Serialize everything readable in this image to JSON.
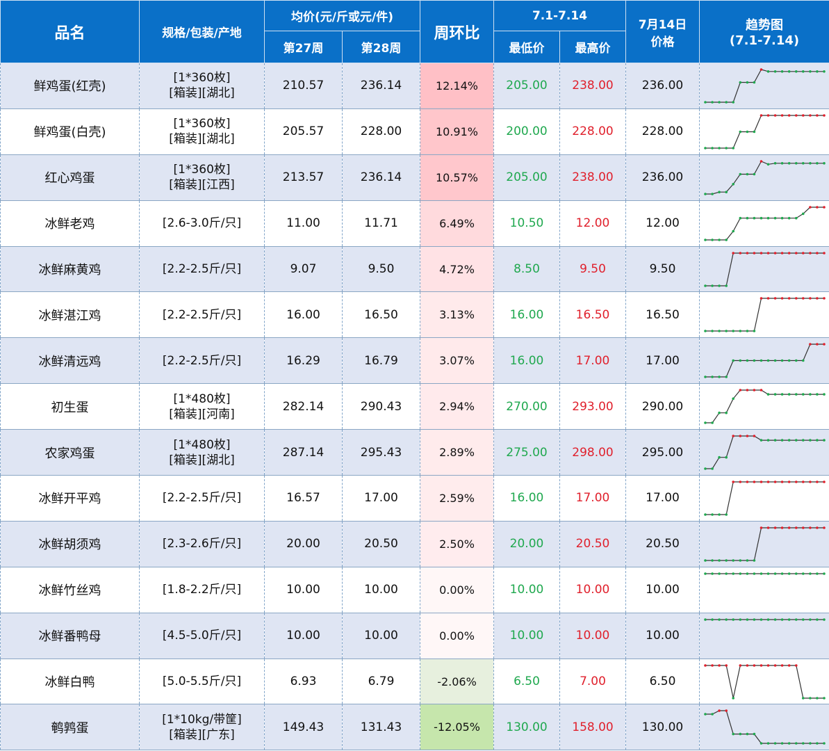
{
  "header": {
    "name": "品名",
    "spec": "规格/包装/产地",
    "avg": "均价(元/斤或元/件)",
    "w27": "第27周",
    "w28": "第28周",
    "wow": "周环比",
    "range": "7.1-7.14",
    "min": "最低价",
    "max": "最高价",
    "date_line1": "7月14日",
    "date_line2": "价格",
    "trend_line1": "趋势图",
    "trend_line2": "(7.1-7.14)"
  },
  "colors": {
    "header_bg": "#0a70c8",
    "row_alt_bg": "#dfe5f3",
    "low_price": "#1fa84e",
    "high_price": "#e0202c",
    "trend_high_marker": "#e0202c",
    "trend_low_marker": "#1fa84e"
  },
  "rows": [
    {
      "name": "鲜鸡蛋(红壳)",
      "spec1": "[1*360枚]",
      "spec2": "[箱装][湖北]",
      "w27": "210.57",
      "w28": "236.14",
      "wow": "12.14%",
      "wow_value": 12.14,
      "min": "205.00",
      "max": "238.00",
      "price": "236.00",
      "trend": [
        205,
        205,
        205,
        205,
        205,
        225,
        225,
        225,
        238,
        236,
        236,
        236,
        236,
        236,
        236,
        236,
        236,
        236
      ]
    },
    {
      "name": "鲜鸡蛋(白壳)",
      "spec1": "[1*360枚]",
      "spec2": "[箱装][湖北]",
      "w27": "205.57",
      "w28": "228.00",
      "wow": "10.91%",
      "wow_value": 10.91,
      "min": "200.00",
      "max": "228.00",
      "price": "228.00",
      "trend": [
        200,
        200,
        200,
        200,
        200,
        214,
        214,
        214,
        228,
        228,
        228,
        228,
        228,
        228,
        228,
        228,
        228,
        228
      ]
    },
    {
      "name": "红心鸡蛋",
      "spec1": "[1*360枚]",
      "spec2": "[箱装][江西]",
      "w27": "213.57",
      "w28": "236.14",
      "wow": "10.57%",
      "wow_value": 10.57,
      "min": "205.00",
      "max": "238.00",
      "price": "236.00",
      "trend": [
        205,
        205,
        207,
        207,
        215,
        225,
        225,
        225,
        238,
        235,
        236,
        236,
        236,
        236,
        236,
        236,
        236,
        236
      ]
    },
    {
      "name": "冰鲜老鸡",
      "spec1": "[2.6-3.0斤/只]",
      "spec2": "",
      "w27": "11.00",
      "w28": "11.71",
      "wow": "6.49%",
      "wow_value": 6.49,
      "min": "10.50",
      "max": "12.00",
      "price": "12.00",
      "trend": [
        10.5,
        10.5,
        10.5,
        10.5,
        10.9,
        11.5,
        11.5,
        11.5,
        11.5,
        11.5,
        11.5,
        11.5,
        11.5,
        11.5,
        11.7,
        12,
        12,
        12
      ]
    },
    {
      "name": "冰鲜麻黄鸡",
      "spec1": "[2.2-2.5斤/只]",
      "spec2": "",
      "w27": "9.07",
      "w28": "9.50",
      "wow": "4.72%",
      "wow_value": 4.72,
      "min": "8.50",
      "max": "9.50",
      "price": "9.50",
      "trend": [
        8.5,
        8.5,
        8.5,
        8.5,
        9.5,
        9.5,
        9.5,
        9.5,
        9.5,
        9.5,
        9.5,
        9.5,
        9.5,
        9.5,
        9.5,
        9.5,
        9.5,
        9.5
      ]
    },
    {
      "name": "冰鲜湛江鸡",
      "spec1": "[2.2-2.5斤/只]",
      "spec2": "",
      "w27": "16.00",
      "w28": "16.50",
      "wow": "3.13%",
      "wow_value": 3.13,
      "min": "16.00",
      "max": "16.50",
      "price": "16.50",
      "trend": [
        16,
        16,
        16,
        16,
        16,
        16,
        16,
        16,
        16.5,
        16.5,
        16.5,
        16.5,
        16.5,
        16.5,
        16.5,
        16.5,
        16.5,
        16.5
      ]
    },
    {
      "name": "冰鲜清远鸡",
      "spec1": "[2.2-2.5斤/只]",
      "spec2": "",
      "w27": "16.29",
      "w28": "16.79",
      "wow": "3.07%",
      "wow_value": 3.07,
      "min": "16.00",
      "max": "17.00",
      "price": "17.00",
      "trend": [
        16,
        16,
        16,
        16,
        16.5,
        16.5,
        16.5,
        16.5,
        16.5,
        16.5,
        16.5,
        16.5,
        16.5,
        16.5,
        16.5,
        17,
        17,
        17
      ]
    },
    {
      "name": "初生蛋",
      "spec1": "[1*480枚]",
      "spec2": "[箱装][河南]",
      "w27": "282.14",
      "w28": "290.43",
      "wow": "2.94%",
      "wow_value": 2.94,
      "min": "270.00",
      "max": "293.00",
      "price": "290.00",
      "trend": [
        270,
        270,
        277,
        277,
        287,
        293,
        293,
        293,
        293,
        290,
        290,
        290,
        290,
        290,
        290,
        290,
        290,
        290
      ]
    },
    {
      "name": "农家鸡蛋",
      "spec1": "[1*480枚]",
      "spec2": "[箱装][湖北]",
      "w27": "287.14",
      "w28": "295.43",
      "wow": "2.89%",
      "wow_value": 2.89,
      "min": "275.00",
      "max": "298.00",
      "price": "295.00",
      "trend": [
        275,
        275,
        283,
        283,
        298,
        298,
        298,
        298,
        295,
        295,
        295,
        295,
        295,
        295,
        295,
        295,
        295,
        295
      ]
    },
    {
      "name": "冰鲜开平鸡",
      "spec1": "[2.2-2.5斤/只]",
      "spec2": "",
      "w27": "16.57",
      "w28": "17.00",
      "wow": "2.59%",
      "wow_value": 2.59,
      "min": "16.00",
      "max": "17.00",
      "price": "17.00",
      "trend": [
        16,
        16,
        16,
        16,
        17,
        17,
        17,
        17,
        17,
        17,
        17,
        17,
        17,
        17,
        17,
        17,
        17,
        17
      ]
    },
    {
      "name": "冰鲜胡须鸡",
      "spec1": "[2.3-2.6斤/只]",
      "spec2": "",
      "w27": "20.00",
      "w28": "20.50",
      "wow": "2.50%",
      "wow_value": 2.5,
      "min": "20.00",
      "max": "20.50",
      "price": "20.50",
      "trend": [
        20,
        20,
        20,
        20,
        20,
        20,
        20,
        20,
        20.5,
        20.5,
        20.5,
        20.5,
        20.5,
        20.5,
        20.5,
        20.5,
        20.5,
        20.5
      ]
    },
    {
      "name": "冰鲜竹丝鸡",
      "spec1": "[1.8-2.2斤/只]",
      "spec2": "",
      "w27": "10.00",
      "w28": "10.00",
      "wow": "0.00%",
      "wow_value": 0,
      "min": "10.00",
      "max": "10.00",
      "price": "10.00",
      "trend": [
        10,
        10,
        10,
        10,
        10,
        10,
        10,
        10,
        10,
        10,
        10,
        10,
        10,
        10,
        10,
        10,
        10,
        10
      ]
    },
    {
      "name": "冰鲜番鸭母",
      "spec1": "[4.5-5.0斤/只]",
      "spec2": "",
      "w27": "10.00",
      "w28": "10.00",
      "wow": "0.00%",
      "wow_value": 0,
      "min": "10.00",
      "max": "10.00",
      "price": "10.00",
      "trend": [
        10,
        10,
        10,
        10,
        10,
        10,
        10,
        10,
        10,
        10,
        10,
        10,
        10,
        10,
        10,
        10,
        10,
        10
      ]
    },
    {
      "name": "冰鲜白鸭",
      "spec1": "[5.0-5.5斤/只]",
      "spec2": "",
      "w27": "6.93",
      "w28": "6.79",
      "wow": "-2.06%",
      "wow_value": -2.06,
      "min": "6.50",
      "max": "7.00",
      "price": "6.50",
      "trend": [
        7,
        7,
        7,
        7,
        6.5,
        7,
        7,
        7,
        7,
        7,
        7,
        7,
        7,
        7,
        6.5,
        6.5,
        6.5,
        6.5
      ]
    },
    {
      "name": "鹌鹑蛋",
      "spec1": "[1*10kg/带筐]",
      "spec2": "[箱装][广东]",
      "w27": "149.43",
      "w28": "131.43",
      "wow": "-12.05%",
      "wow_value": -12.05,
      "min": "130.00",
      "max": "158.00",
      "price": "130.00",
      "trend": [
        155,
        155,
        158,
        158,
        138,
        138,
        138,
        138,
        130,
        130,
        130,
        130,
        130,
        130,
        130,
        130,
        130,
        130
      ]
    }
  ]
}
